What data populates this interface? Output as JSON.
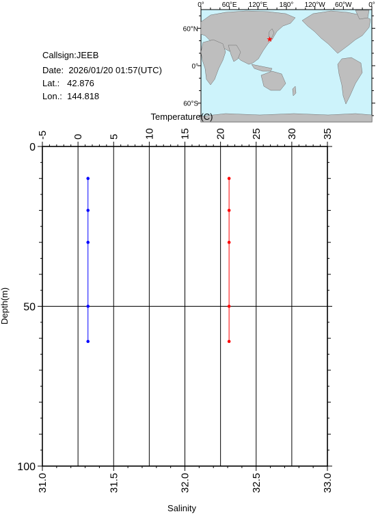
{
  "station": {
    "callsign_label": "Callsign:",
    "callsign": "JEEB",
    "date_label": "Date:",
    "date": "2026/01/20 01:57(UTC)",
    "lat_label": "Lat.:",
    "lat": "42.876",
    "lon_label": "Lon.:",
    "lon": "144.818"
  },
  "map": {
    "lon_ticks": [
      "0°",
      "60°E",
      "120°E",
      "180°",
      "120°W",
      "60°W",
      "0°"
    ],
    "lat_ticks": [
      "60°N",
      "0°",
      "60°S"
    ],
    "marker": {
      "lat": 42.876,
      "lon": 144.818
    },
    "ocean_color": "#cdf3fb",
    "land_color": "#bebebe",
    "marker_color": "#ff0000"
  },
  "chart_data": {
    "type": "line",
    "ylabel": "Depth(m)",
    "y_reversed": true,
    "ylim": [
      0,
      100
    ],
    "yticks": [
      0,
      50,
      100
    ],
    "x_top": {
      "label": "Temperature(C)",
      "lim": [
        -5,
        35
      ],
      "ticks": [
        -5,
        0,
        5,
        10,
        15,
        20,
        25,
        30,
        35
      ]
    },
    "x_bottom": {
      "label": "Salinity",
      "lim": [
        31.0,
        33.0
      ],
      "ticks": [
        "31.0",
        "31.5",
        "32.0",
        "32.5",
        "33.0"
      ]
    },
    "series": [
      {
        "axis": "bottom",
        "color": "#0000ff",
        "points": [
          {
            "x": 31.32,
            "depth": 10
          },
          {
            "x": 31.32,
            "depth": 20
          },
          {
            "x": 31.32,
            "depth": 30
          },
          {
            "x": 31.32,
            "depth": 50
          },
          {
            "x": 31.32,
            "depth": 61
          }
        ]
      },
      {
        "axis": "top",
        "color": "#ff0000",
        "points": [
          {
            "x": 21.2,
            "depth": 10
          },
          {
            "x": 21.2,
            "depth": 20
          },
          {
            "x": 21.2,
            "depth": 30
          },
          {
            "x": 21.2,
            "depth": 50
          },
          {
            "x": 21.2,
            "depth": 61
          }
        ]
      }
    ]
  }
}
